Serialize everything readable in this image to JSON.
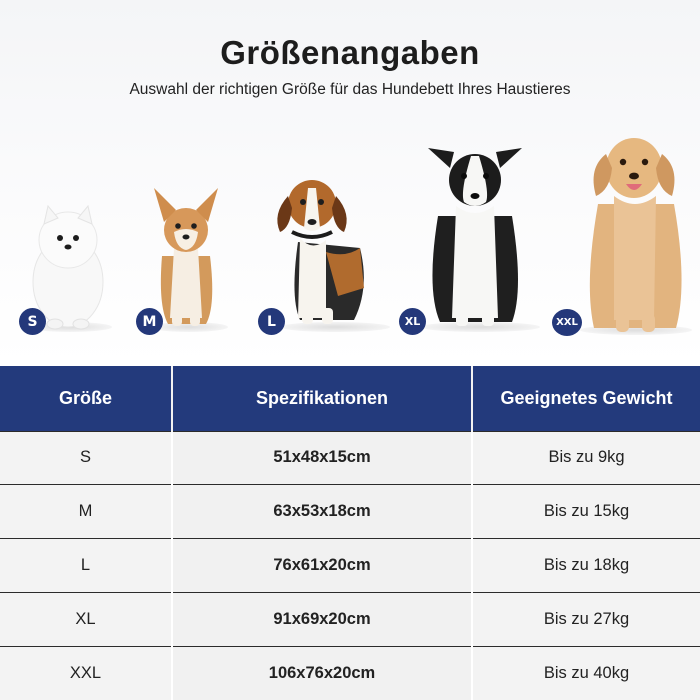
{
  "header": {
    "title": "Größenangaben",
    "subtitle": "Auswahl der richtigen Größe für das Hundebett Ihres Haustieres"
  },
  "dogs": [
    {
      "size": "S",
      "breed_icon": "pomeranian-dog-icon"
    },
    {
      "size": "M",
      "breed_icon": "corgi-dog-icon"
    },
    {
      "size": "L",
      "breed_icon": "beagle-dog-icon"
    },
    {
      "size": "XL",
      "breed_icon": "border-collie-dog-icon"
    },
    {
      "size": "XXL",
      "breed_icon": "golden-retriever-dog-icon"
    }
  ],
  "table": {
    "headers": [
      "Größe",
      "Spezifikationen",
      "Geeignetes Gewicht"
    ],
    "rows": [
      {
        "size": "S",
        "spec": "51x48x15cm",
        "weight": "Bis zu 9kg"
      },
      {
        "size": "M",
        "spec": "63x53x18cm",
        "weight": "Bis zu 15kg"
      },
      {
        "size": "L",
        "spec": "76x61x20cm",
        "weight": "Bis zu 18kg"
      },
      {
        "size": "XL",
        "spec": "91x69x20cm",
        "weight": "Bis zu 27kg"
      },
      {
        "size": "XXL",
        "spec": "106x76x20cm",
        "weight": "Bis zu 40kg"
      }
    ]
  },
  "colors": {
    "accent_navy": "#233a7c",
    "row_background": "#f3f3f3",
    "text": "#222222"
  }
}
